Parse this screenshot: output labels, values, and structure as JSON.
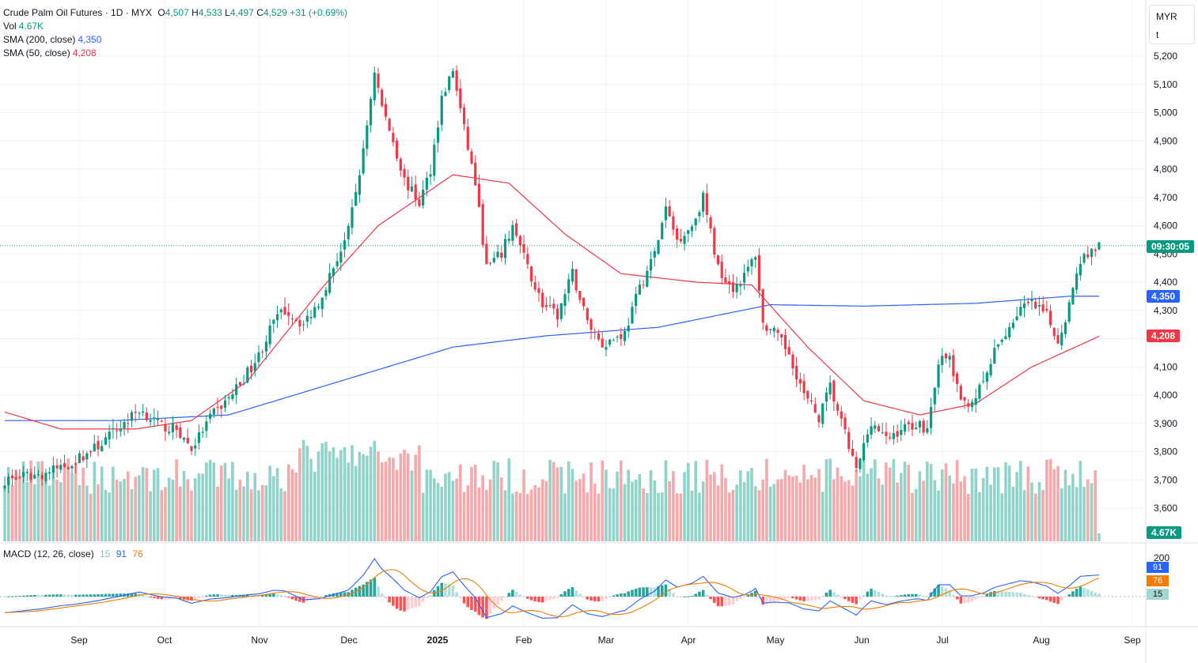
{
  "legend": {
    "title": "Crude Palm Oil Futures · 1D · MYX",
    "open_label": "O",
    "open": "4,507",
    "high_label": "H",
    "high": "4,533",
    "low_label": "L",
    "low": "4,497",
    "close_label": "C",
    "close": "4,529",
    "change": "+31 (+0.69%)",
    "vol_label": "Vol",
    "vol": "4.67K",
    "sma200_label": "SMA (200, close)",
    "sma200": "4,350",
    "sma50_label": "SMA (50, close)",
    "sma50": "4,208",
    "macd_label": "MACD (12, 26, close)",
    "macd_hist": "15",
    "macd_line": "91",
    "macd_signal": "76"
  },
  "currency": {
    "code": "MYR",
    "unit": "t"
  },
  "price_labels": {
    "countdown": "09:30:05",
    "sma200": "4,350",
    "sma50": "4,208",
    "volume": "4.67K"
  },
  "macd_labels": {
    "macd": "91",
    "signal": "76",
    "hist": "15",
    "axis_top": "200"
  },
  "colors": {
    "up": "#089981",
    "down": "#f23645",
    "vol_up": "#8fd3c9",
    "vol_down": "#f6a9ab",
    "sma200": "#2962ff",
    "sma50": "#f23645",
    "macd": "#2962ff",
    "signal": "#f57c00"
  },
  "chart_data": {
    "type": "candlestick",
    "title": "Crude Palm Oil Futures",
    "interval": "1D",
    "currency": "MYR",
    "y_ticks": [
      "5,200",
      "5,100",
      "5,000",
      "4,900",
      "4,800",
      "4,700",
      "4,600",
      "4,500",
      "4,400",
      "4,300",
      "4,200",
      "4,100",
      "4,000",
      "3,900",
      "3,800",
      "3,700",
      "3,600"
    ],
    "x_ticks": [
      "Sep",
      "Oct",
      "Nov",
      "Dec",
      "2025",
      "Feb",
      "Mar",
      "Apr",
      "May",
      "Jun",
      "Jul",
      "Aug",
      "Sep"
    ],
    "last_price": 4529,
    "close_path": [
      [
        0,
        3700
      ],
      [
        10,
        3720
      ],
      [
        18,
        3760
      ],
      [
        25,
        3820
      ],
      [
        32,
        3900
      ],
      [
        36,
        3950
      ],
      [
        42,
        3890
      ],
      [
        46,
        3880
      ],
      [
        50,
        3810
      ],
      [
        55,
        3920
      ],
      [
        60,
        3990
      ],
      [
        64,
        4060
      ],
      [
        68,
        4140
      ],
      [
        72,
        4260
      ],
      [
        75,
        4300
      ],
      [
        80,
        4250
      ],
      [
        84,
        4330
      ],
      [
        87,
        4420
      ],
      [
        92,
        4580
      ],
      [
        96,
        4860
      ],
      [
        99,
        5150
      ],
      [
        101,
        5020
      ],
      [
        104,
        4900
      ],
      [
        107,
        4760
      ],
      [
        111,
        4680
      ],
      [
        114,
        4800
      ],
      [
        117,
        5050
      ],
      [
        120,
        5150
      ],
      [
        123,
        4940
      ],
      [
        126,
        4750
      ],
      [
        129,
        4450
      ],
      [
        133,
        4500
      ],
      [
        136,
        4600
      ],
      [
        140,
        4450
      ],
      [
        144,
        4320
      ],
      [
        148,
        4280
      ],
      [
        152,
        4430
      ],
      [
        156,
        4260
      ],
      [
        160,
        4180
      ],
      [
        163,
        4200
      ],
      [
        166,
        4220
      ],
      [
        170,
        4380
      ],
      [
        174,
        4500
      ],
      [
        177,
        4660
      ],
      [
        180,
        4550
      ],
      [
        184,
        4600
      ],
      [
        187,
        4700
      ],
      [
        191,
        4450
      ],
      [
        195,
        4380
      ],
      [
        198,
        4420
      ],
      [
        201,
        4500
      ],
      [
        203,
        4250
      ],
      [
        206,
        4220
      ],
      [
        210,
        4150
      ],
      [
        214,
        4000
      ],
      [
        218,
        3920
      ],
      [
        221,
        4030
      ],
      [
        225,
        3860
      ],
      [
        228,
        3730
      ],
      [
        232,
        3910
      ],
      [
        236,
        3840
      ],
      [
        240,
        3880
      ],
      [
        244,
        3900
      ],
      [
        247,
        3880
      ],
      [
        250,
        4120
      ],
      [
        253,
        4130
      ],
      [
        256,
        3970
      ],
      [
        259,
        3980
      ],
      [
        262,
        4040
      ],
      [
        265,
        4150
      ],
      [
        268,
        4220
      ],
      [
        272,
        4310
      ],
      [
        275,
        4320
      ],
      [
        279,
        4280
      ],
      [
        282,
        4190
      ],
      [
        285,
        4320
      ],
      [
        288,
        4480
      ],
      [
        291,
        4510
      ],
      [
        293,
        4529
      ]
    ],
    "sma200": [
      [
        0,
        3910
      ],
      [
        30,
        3910
      ],
      [
        60,
        3930
      ],
      [
        90,
        4050
      ],
      [
        120,
        4170
      ],
      [
        145,
        4210
      ],
      [
        175,
        4240
      ],
      [
        205,
        4320
      ],
      [
        230,
        4315
      ],
      [
        260,
        4325
      ],
      [
        285,
        4350
      ],
      [
        293,
        4350
      ]
    ],
    "sma50": [
      [
        0,
        3940
      ],
      [
        15,
        3880
      ],
      [
        35,
        3880
      ],
      [
        50,
        3910
      ],
      [
        65,
        4050
      ],
      [
        85,
        4380
      ],
      [
        100,
        4600
      ],
      [
        120,
        4780
      ],
      [
        135,
        4750
      ],
      [
        150,
        4570
      ],
      [
        165,
        4430
      ],
      [
        185,
        4400
      ],
      [
        200,
        4390
      ],
      [
        215,
        4170
      ],
      [
        230,
        3980
      ],
      [
        245,
        3930
      ],
      [
        260,
        3970
      ],
      [
        275,
        4100
      ],
      [
        285,
        4160
      ],
      [
        293,
        4208
      ]
    ],
    "volume_last": 4.67,
    "macd": {
      "macd": 91,
      "signal": 76,
      "histogram": 15
    }
  }
}
